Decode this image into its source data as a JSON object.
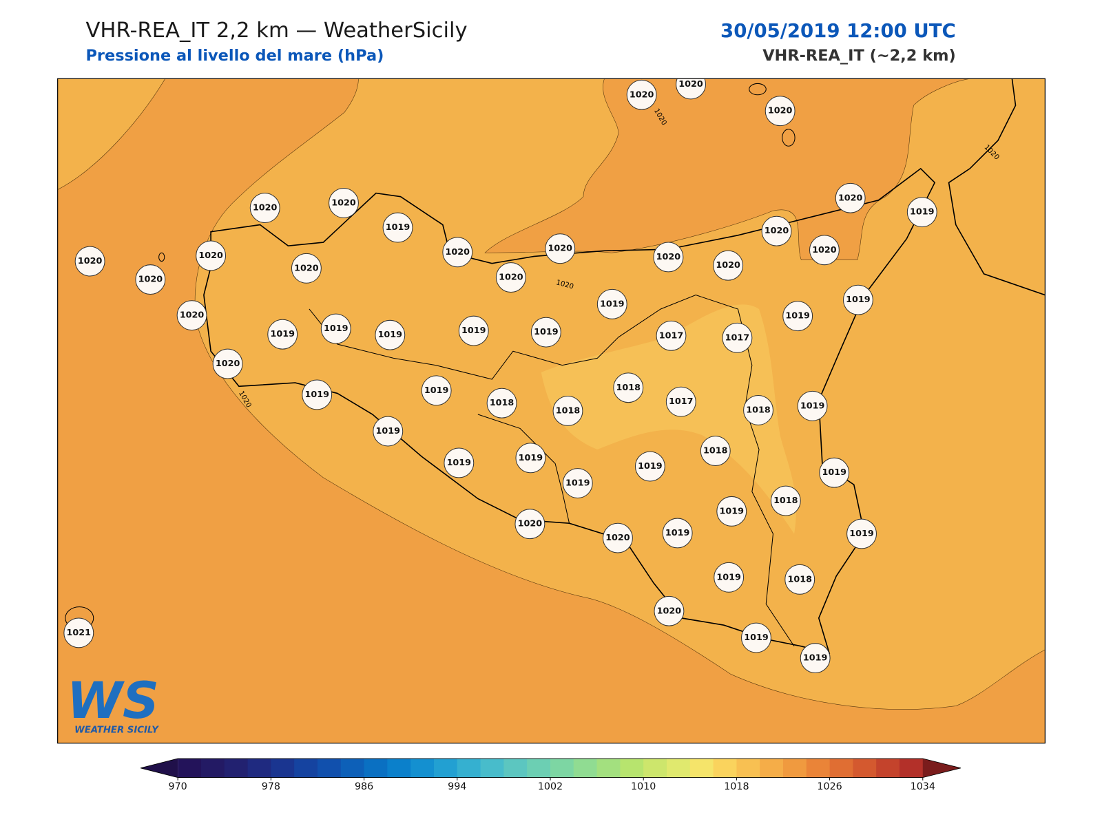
{
  "header": {
    "title": "VHR-REA_IT 2,2 km — WeatherSicily",
    "subtitle": "Pressione al livello del mare (hPa)",
    "date": "30/05/2019 12:00 UTC",
    "model": "VHR-REA_IT (~2,2 km)"
  },
  "map": {
    "station_values": [
      1020,
      1020,
      1019,
      1020,
      1020,
      1020,
      1020,
      1020,
      1020,
      1020,
      1020,
      1020,
      1020,
      1020,
      1019,
      1020,
      1020,
      1020,
      1020,
      1020,
      1019,
      1019,
      1019,
      1019,
      1019,
      1019,
      1017,
      1017,
      1019,
      1019,
      1020,
      1019,
      1019,
      1018,
      1018,
      1018,
      1017,
      1018,
      1019,
      1019,
      1019,
      1019,
      1019,
      1019,
      1018,
      1019,
      1019,
      1018,
      1019,
      1020,
      1020,
      1019,
      1019,
      1018,
      1020,
      1019,
      1019,
      1021
    ],
    "contour_labels": [
      "1020",
      "1020",
      "1020",
      "1020"
    ],
    "logo": {
      "mark": "WS",
      "text": "WEATHER SICILY"
    }
  },
  "colorbar": {
    "lim": [
      970,
      1034
    ],
    "ticks": [
      970,
      978,
      986,
      994,
      1002,
      1010,
      1018,
      1026,
      1034
    ],
    "colors": [
      "#23135a",
      "#231a64",
      "#222170",
      "#1f2a80",
      "#1a3590",
      "#1543a0",
      "#1150ad",
      "#0d60b8",
      "#0a70c2",
      "#0b80cb",
      "#1490d0",
      "#22a0d2",
      "#35b0d0",
      "#48bccb",
      "#5cc6c0",
      "#6ccfb3",
      "#7dd6a3",
      "#90dc92",
      "#a3e07f",
      "#b7e46e",
      "#cde66c",
      "#e0e96e",
      "#f5e46a",
      "#fad35d",
      "#f8c052",
      "#f5ad48",
      "#f09a3f",
      "#ea8438",
      "#e06e33",
      "#d4592f",
      "#c4432c",
      "#b33029"
    ],
    "under_color": "#20104a",
    "over_color": "#7a1c1c"
  }
}
